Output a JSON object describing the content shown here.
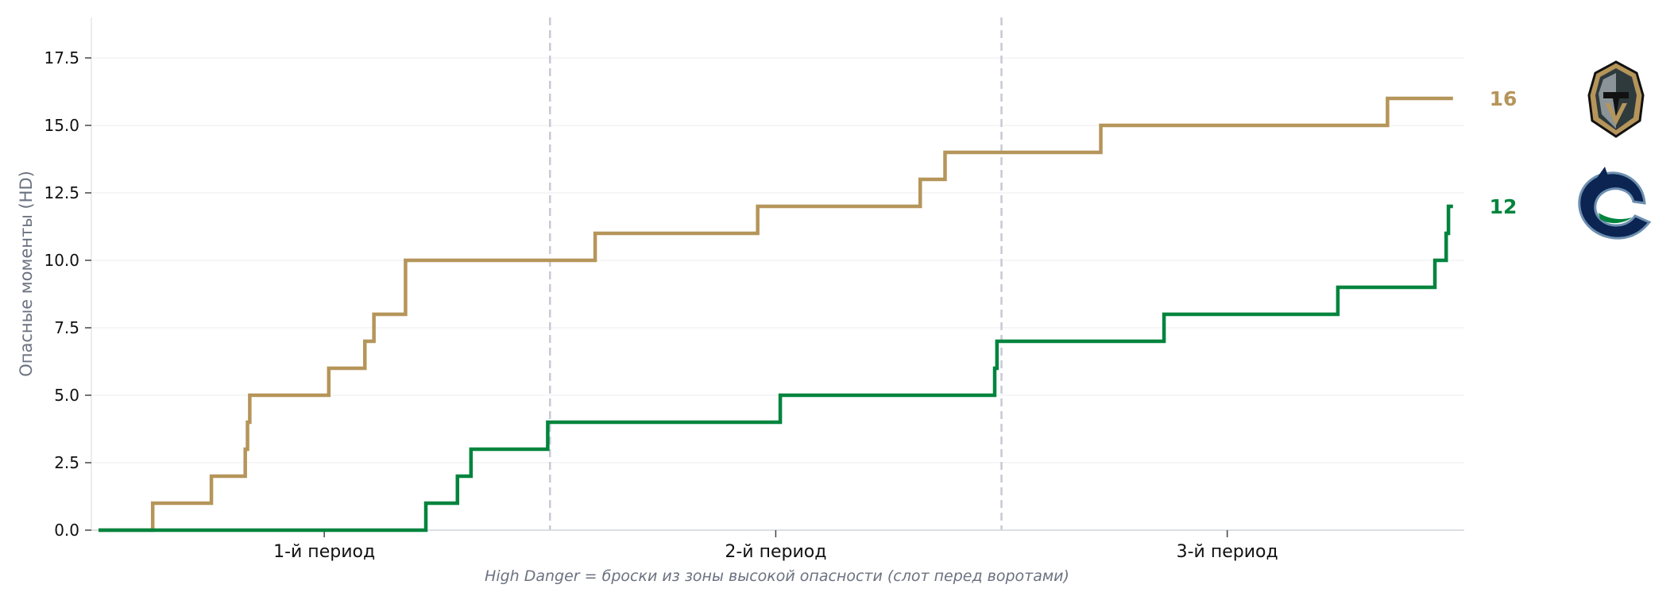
{
  "chart_data": {
    "type": "line",
    "step": true,
    "ylabel": "Опасные моменты (HD)",
    "caption": "High Danger = броски из зоны высокой опасности (слот перед воротами)",
    "ylim": [
      0,
      19
    ],
    "xlim": [
      0,
      60.5
    ],
    "yticks": [
      "0.0",
      "2.5",
      "5.0",
      "7.5",
      "10.0",
      "12.5",
      "15.0",
      "17.5"
    ],
    "ytick_values": [
      0,
      2.5,
      5,
      7.5,
      10,
      12.5,
      15,
      17.5
    ],
    "period_labels": [
      "1-й период",
      "2-й период",
      "3-й период"
    ],
    "period_label_positions": [
      10,
      30,
      50
    ],
    "period_dividers": [
      20,
      40
    ],
    "grid": "horizontal",
    "series": [
      {
        "team": "Vegas Golden Knights",
        "color": "#b5955a",
        "final": "16",
        "logo": "golden-knights-logo",
        "x": [
          0,
          2.4,
          5.0,
          6.5,
          6.6,
          6.7,
          10.2,
          11.8,
          12.2,
          13.6,
          22.0,
          29.2,
          36.4,
          37.5,
          44.4,
          57.1,
          60.0
        ],
        "y": [
          0,
          1,
          2,
          3,
          4,
          5,
          6,
          7,
          8,
          10,
          11,
          12,
          13,
          14,
          15,
          16,
          16
        ]
      },
      {
        "team": "Vancouver Canucks",
        "color": "#00843d",
        "final": "12",
        "logo": "canucks-logo",
        "x": [
          0,
          14.5,
          15.9,
          16.5,
          19.9,
          30.2,
          39.7,
          39.8,
          47.2,
          54.9,
          59.2,
          59.7,
          59.8,
          60.0
        ],
        "y": [
          0,
          1,
          2,
          3,
          4,
          5,
          6,
          7,
          8,
          9,
          10,
          11,
          12,
          12
        ]
      }
    ]
  }
}
